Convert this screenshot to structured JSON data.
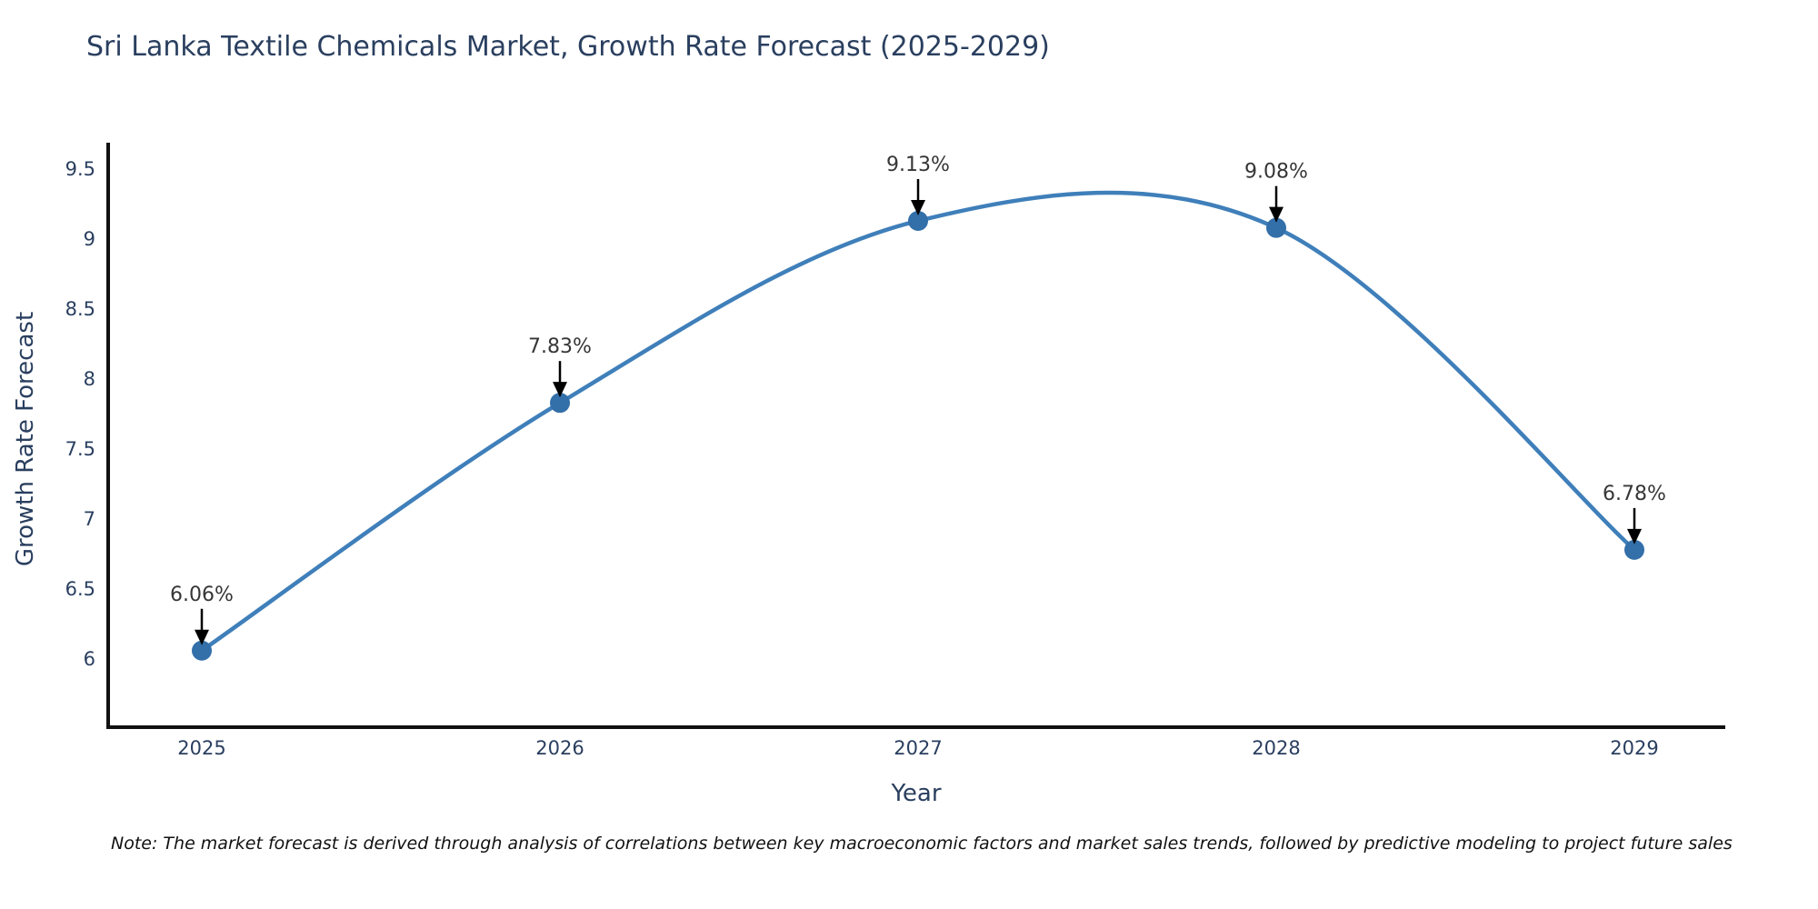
{
  "header": {
    "title": "Sri Lanka Textile Chemicals Market, Growth Rate Forecast (2025-2029)"
  },
  "footnote": {
    "text": "Note: The market forecast is derived through analysis of correlations between key macroeconomic factors and market sales trends, followed by predictive modeling to project future sales"
  },
  "chart_data": {
    "type": "line",
    "title": "Sri Lanka Textile Chemicals Market, Growth Rate Forecast (2025-2029)",
    "xlabel": "Year",
    "ylabel": "Growth Rate Forecast",
    "x": [
      2025,
      2026,
      2027,
      2028,
      2029
    ],
    "values": [
      6.06,
      7.83,
      9.13,
      9.08,
      6.78
    ],
    "point_labels": [
      "6.06%",
      "7.83%",
      "9.13%",
      "9.08%",
      "6.78%"
    ],
    "xtick_labels": [
      "2025",
      "2026",
      "2027",
      "2028",
      "2029"
    ],
    "ytick_values": [
      6,
      6.5,
      7,
      7.5,
      8,
      8.5,
      9,
      9.5
    ],
    "ytick_labels": [
      "6",
      "6.5",
      "7",
      "7.5",
      "8",
      "8.5",
      "9",
      "9.5"
    ],
    "ylim": [
      5.51,
      9.68
    ],
    "grid": false,
    "legend_position": "none",
    "line_shape": "spline",
    "colors": {
      "line": "#3f7fba",
      "marker": "#336fa9",
      "axis": "#111111",
      "tick_text": "#2a3f5f",
      "annotation_text": "#363636",
      "arrow": "#000000",
      "background": "#ffffff"
    }
  }
}
